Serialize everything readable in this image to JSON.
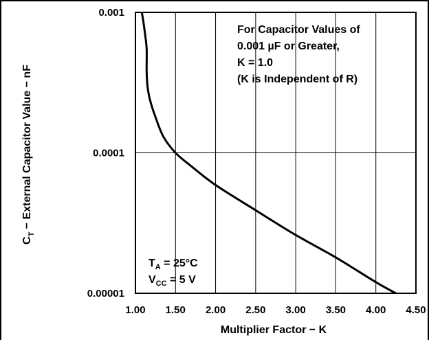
{
  "chart_data": {
    "type": "line",
    "title": "",
    "xlabel": "Multiplier Factor − K",
    "ylabel": {
      "prefix": "C",
      "subscript": "T",
      "rest": " − External Capacitor Value − ",
      "unit": "nF"
    },
    "x_ticks": [
      "1.00",
      "1.50",
      "2.00",
      "2.50",
      "3.00",
      "3.50",
      "4.00",
      "4.50"
    ],
    "xlim": [
      1.0,
      4.5
    ],
    "y_scale": "log",
    "y_ticks": [
      {
        "value": 1e-05,
        "label": "0.00001"
      },
      {
        "value": 0.0001,
        "label": "0.0001"
      },
      {
        "value": 0.001,
        "label": "0.001"
      }
    ],
    "ylim": [
      1e-05,
      0.001
    ],
    "grid": {
      "vertical": true,
      "horizontal": true
    },
    "series": [
      {
        "name": "",
        "color": "#000000",
        "x": [
          1.08,
          1.1,
          1.12,
          1.14,
          1.14,
          1.15,
          1.18,
          1.25,
          1.35,
          1.5,
          1.7,
          2.0,
          2.5,
          3.0,
          3.5,
          4.0,
          4.25
        ],
        "y": [
          0.001,
          0.00085,
          0.0007,
          0.00055,
          0.00038,
          0.0003,
          0.00024,
          0.00018,
          0.00013,
          0.0001,
          8e-05,
          5.9e-05,
          3.9e-05,
          2.6e-05,
          1.8e-05,
          1.2e-05,
          1e-05
        ]
      }
    ],
    "annotations": {
      "note_lines": [
        "For Capacitor Values of",
        "0.001 µF or Greater,",
        "K = 1.0",
        "(K is Independent of R)"
      ],
      "ta": {
        "symbol": "T",
        "sub": "A",
        "value": " = 25°C"
      },
      "vcc": {
        "symbol": "V",
        "sub": "CC",
        "value": " = 5 V"
      }
    }
  }
}
